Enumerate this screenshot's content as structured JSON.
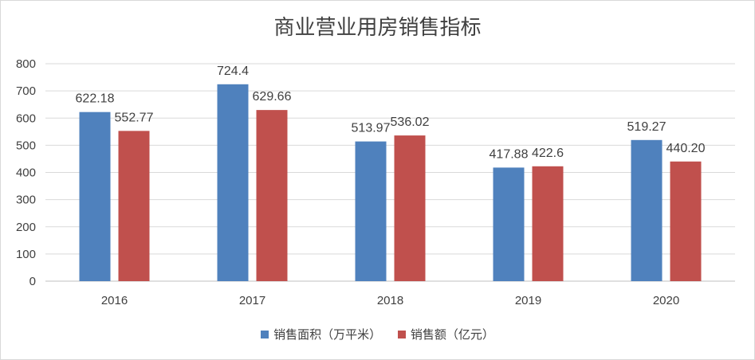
{
  "chart_data": {
    "type": "bar",
    "title": "商业营业用房销售指标",
    "categories": [
      "2016",
      "2017",
      "2018",
      "2019",
      "2020"
    ],
    "series": [
      {
        "name": "销售面积（万平米）",
        "color": "#4f81bd",
        "values": [
          622.18,
          724.4,
          513.97,
          417.88,
          519.27
        ],
        "labels": [
          "622.18",
          "724.4",
          "513.97",
          "417.88",
          "519.27"
        ]
      },
      {
        "name": "销售额（亿元）",
        "color": "#c0504d",
        "values": [
          552.77,
          629.66,
          536.02,
          422.6,
          440.2
        ],
        "labels": [
          "552.77",
          "629.66",
          "536.02",
          "422.6",
          "440.20"
        ]
      }
    ],
    "yticks": [
      "0",
      "100",
      "200",
      "300",
      "400",
      "500",
      "600",
      "700",
      "800"
    ],
    "ylim": [
      0,
      800
    ],
    "grid": true,
    "legend_position": "bottom"
  }
}
